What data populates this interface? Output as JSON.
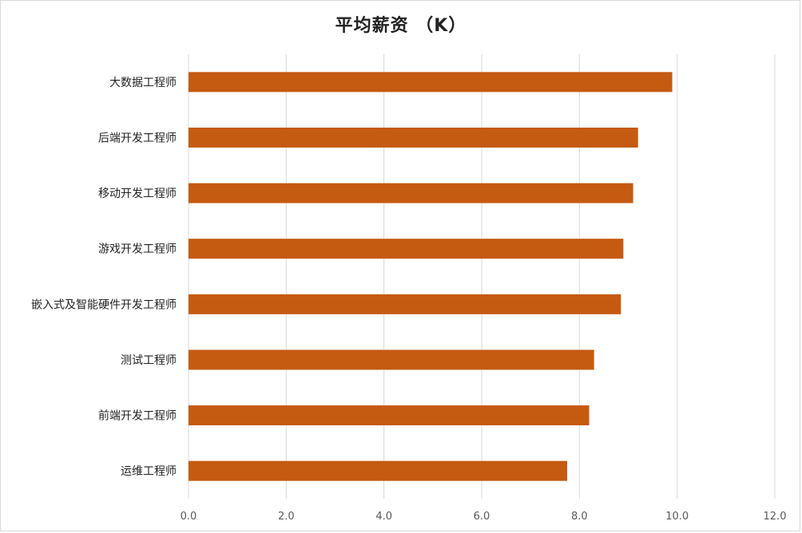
{
  "chart_data": {
    "type": "bar",
    "orientation": "horizontal",
    "title": "平均薪资 （K）",
    "xlabel": "",
    "ylabel": "",
    "categories": [
      "大数据工程师",
      "后端开发工程师",
      "移动开发工程师",
      "游戏开发工程师",
      "嵌入式及智能硬件开发工程师",
      "测试工程师",
      "前端开发工程师",
      "运维工程师"
    ],
    "values": [
      9.9,
      9.2,
      9.1,
      8.9,
      8.85,
      8.3,
      8.2,
      7.75
    ],
    "xlim": [
      0,
      12
    ],
    "ticks": [
      "0.0",
      "2.0",
      "4.0",
      "6.0",
      "8.0",
      "10.0",
      "12.0"
    ],
    "tick_values": [
      0,
      2,
      4,
      6,
      8,
      10,
      12
    ],
    "grid": true,
    "legend": "none",
    "bar_color": "#c55a11",
    "grid_color": "#d9d9d9"
  }
}
